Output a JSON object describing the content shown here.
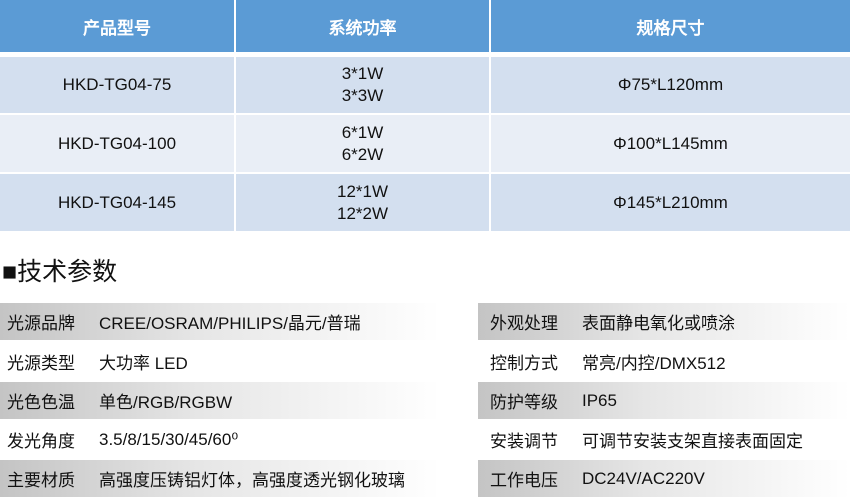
{
  "table": {
    "headers": [
      "产品型号",
      "系统功率",
      "规格尺寸"
    ],
    "rows": [
      {
        "model": "HKD-TG04-75",
        "power": [
          "3*1W",
          "3*3W"
        ],
        "size": "Φ75*L120mm"
      },
      {
        "model": "HKD-TG04-100",
        "power": [
          "6*1W",
          "6*2W"
        ],
        "size": "Φ100*L145mm"
      },
      {
        "model": "HKD-TG04-145",
        "power": [
          "12*1W",
          "12*2W"
        ],
        "size": "Φ145*L210mm"
      }
    ]
  },
  "section_title": "■技术参数",
  "specs_left": [
    {
      "label": "光源品牌",
      "value": "CREE/OSRAM/PHILIPS/晶元/普瑞"
    },
    {
      "label": "光源类型",
      "value": "大功率 LED"
    },
    {
      "label": "光色色温",
      "value": "单色/RGB/RGBW"
    },
    {
      "label": "发光角度",
      "value": "3.5/8/15/30/45/60⁰"
    },
    {
      "label": "主要材质",
      "value": "高强度压铸铝灯体，高强度透光钢化玻璃"
    }
  ],
  "specs_right": [
    {
      "label": "外观处理",
      "value": "表面静电氧化或喷涂"
    },
    {
      "label": "控制方式",
      "value": "常亮/内控/DMX512"
    },
    {
      "label": "防护等级",
      "value": "IP65"
    },
    {
      "label": "安装调节",
      "value": "可调节安装支架直接表面固定"
    },
    {
      "label": "工作电压",
      "value": "DC24V/AC220V"
    }
  ]
}
